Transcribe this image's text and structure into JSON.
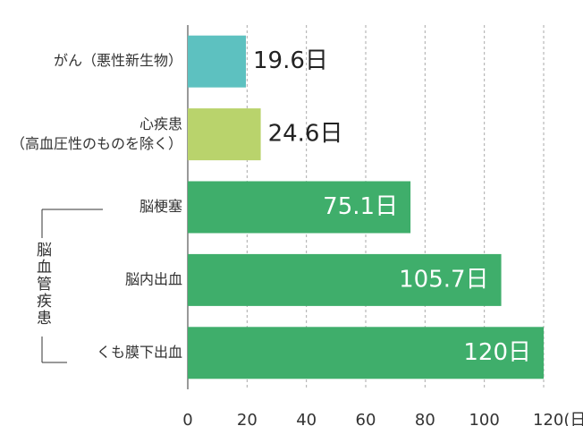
{
  "chart_data": {
    "type": "barh",
    "categories": [
      "がん（悪性新生物）",
      "心疾患\n（高血圧性のものを除く）",
      "脳梗塞",
      "脳内出血",
      "くも膜下出血"
    ],
    "values": [
      19.6,
      24.6,
      75.1,
      105.7,
      120
    ],
    "value_labels": [
      "19.6日",
      "24.6日",
      "75.1日",
      "105.7日",
      "120日"
    ],
    "colors": [
      "#5dc1c0",
      "#b9d36c",
      "#3fae6b",
      "#3fae6b",
      "#3fae6b"
    ],
    "group_label": "脳血管疾患",
    "xlim": [
      0,
      120
    ],
    "xticks": [
      0,
      20,
      40,
      60,
      80,
      100,
      {
        "value": 120,
        "label": "120(日)"
      }
    ],
    "grid": true
  }
}
